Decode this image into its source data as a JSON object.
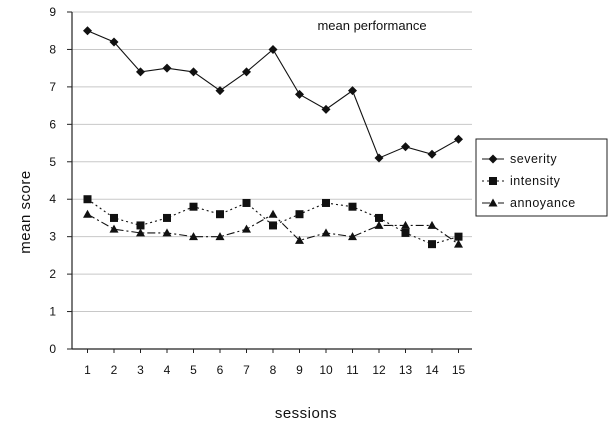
{
  "chart_data": {
    "type": "line",
    "title": "mean performance",
    "xlabel": "sessions",
    "ylabel": "mean score",
    "x": [
      1,
      2,
      3,
      4,
      5,
      6,
      7,
      8,
      9,
      10,
      11,
      12,
      13,
      14,
      15
    ],
    "ylim": [
      0,
      9
    ],
    "yticks": [
      0,
      1,
      2,
      3,
      4,
      5,
      6,
      7,
      8,
      9
    ],
    "grid": true,
    "legend_position": "right",
    "series": [
      {
        "name": "severity",
        "marker": "diamond",
        "line": "solid",
        "values": [
          8.5,
          8.2,
          7.4,
          7.5,
          7.4,
          6.9,
          7.4,
          8.0,
          6.8,
          6.4,
          6.9,
          5.1,
          5.4,
          5.2,
          5.6
        ]
      },
      {
        "name": "intensity",
        "marker": "square",
        "line": "dotted",
        "values": [
          4.0,
          3.5,
          3.3,
          3.5,
          3.8,
          3.6,
          3.9,
          3.3,
          3.6,
          3.9,
          3.8,
          3.5,
          3.1,
          2.8,
          3.0
        ]
      },
      {
        "name": "annoyance",
        "marker": "triangle",
        "line": "dash-dot",
        "values": [
          3.6,
          3.2,
          3.1,
          3.1,
          3.0,
          3.0,
          3.2,
          3.6,
          2.9,
          3.1,
          3.0,
          3.3,
          3.3,
          3.3,
          2.8
        ]
      }
    ]
  }
}
